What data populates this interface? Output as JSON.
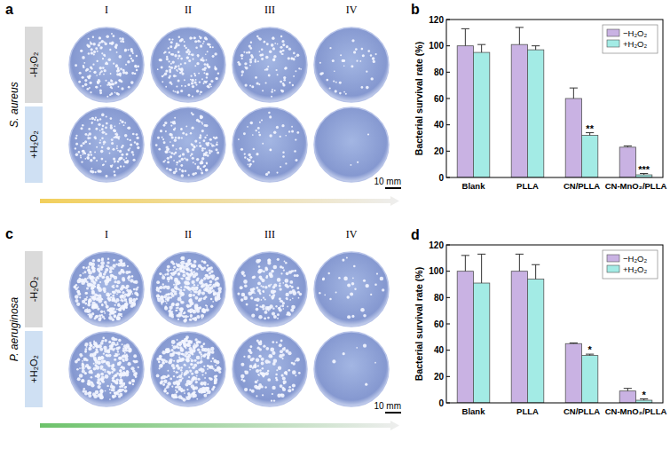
{
  "panels": [
    {
      "label": "a",
      "species": "S. aureus",
      "columns": [
        "I",
        "II",
        "III",
        "IV"
      ],
      "rows": [
        "-H₂O₂",
        "+H₂O₂"
      ],
      "scale_bar": "10 mm",
      "arrow_color": "#f2cf5b"
    },
    {
      "label": "c",
      "species": "P. aeruginosa",
      "columns": [
        "I",
        "II",
        "III",
        "IV"
      ],
      "rows": [
        "-H₂O₂",
        "+H₂O₂"
      ],
      "scale_bar": "10 mm",
      "arrow_color": "#6cc26a"
    }
  ],
  "chart_data": [
    {
      "label": "b",
      "type": "bar",
      "categories": [
        "Blank",
        "PLLA",
        "CN/PLLA",
        "CN-MnO₂/PLLA"
      ],
      "ylabel": "Bacterial survival rate (%)",
      "ylim": [
        0,
        120
      ],
      "yticks": [
        0,
        20,
        40,
        60,
        80,
        100,
        120
      ],
      "legend": "top-right",
      "series": [
        {
          "name": "−H₂O₂",
          "color": "#c9b2e3",
          "values": [
            100,
            101,
            60,
            23
          ],
          "errors": [
            13,
            13,
            8,
            1
          ]
        },
        {
          "name": "+H₂O₂",
          "color": "#a3ebe5",
          "values": [
            95,
            97,
            32,
            2
          ],
          "errors": [
            6,
            3,
            2,
            1
          ],
          "significance": [
            null,
            null,
            "**",
            "***"
          ]
        }
      ]
    },
    {
      "label": "d",
      "type": "bar",
      "categories": [
        "Blank",
        "PLLA",
        "CN/PLLA",
        "CN-MnO₂/PLLA"
      ],
      "ylabel": "Bacterial survival rate (%)",
      "ylim": [
        0,
        120
      ],
      "yticks": [
        0,
        20,
        40,
        60,
        80,
        100,
        120
      ],
      "legend": "top-right",
      "series": [
        {
          "name": "−H₂O₂",
          "color": "#c9b2e3",
          "values": [
            100,
            100,
            45,
            9
          ],
          "errors": [
            12,
            13,
            0.5,
            2
          ]
        },
        {
          "name": "+H₂O₂",
          "color": "#a3ebe5",
          "values": [
            91,
            94,
            36,
            2
          ],
          "errors": [
            22,
            11,
            1,
            1
          ],
          "significance": [
            null,
            null,
            "*",
            "*"
          ]
        }
      ]
    }
  ]
}
